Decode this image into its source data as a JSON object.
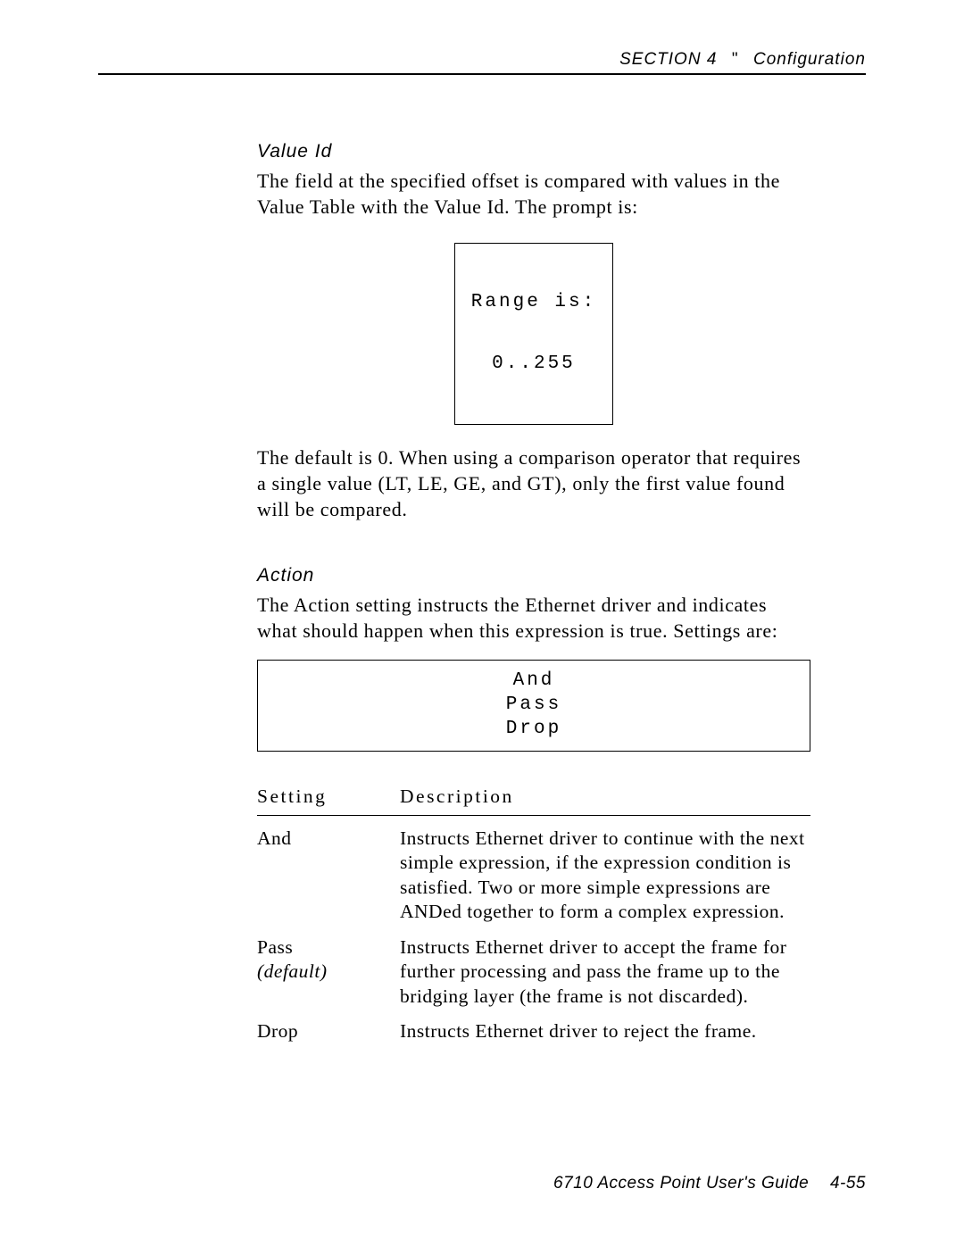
{
  "header": {
    "section_label": "SECTION 4",
    "separator_glyph": "\"",
    "section_title": "Configuration"
  },
  "value_id": {
    "heading": "Value Id",
    "intro": "The field at the specified offset is compared with values in the Value Table with the Value Id.  The prompt is:",
    "prompt_line1": "Range is:",
    "prompt_line2": "0..255",
    "followup": "The default is 0.  When using a comparison operator that requires a single value (LT, LE, GE, and GT), only the first value found will be compared."
  },
  "action": {
    "heading": "Action",
    "intro": "The Action setting instructs the Ethernet driver and indicates what should happen when this expression is true.  Settings are:",
    "options": [
      "And",
      "Pass",
      "Drop"
    ],
    "table": {
      "col_setting": "Setting",
      "col_description": "Description",
      "rows": [
        {
          "setting": "And",
          "default": false,
          "description": "Instructs Ethernet driver to continue with the next simple expression, if the expression condition is satisfied.  Two or more simple expressions are ANDed together to form a complex expression."
        },
        {
          "setting": "Pass",
          "default": true,
          "default_label": "(default)",
          "description": "Instructs Ethernet driver to accept the frame for further processing and pass the frame up to the bridging layer (the frame is not discarded)."
        },
        {
          "setting": "Drop",
          "default": false,
          "description": "Instructs Ethernet driver to reject the frame."
        }
      ]
    }
  },
  "footer": {
    "book_title": "6710 Access Point User's Guide",
    "page_number": "4-55"
  }
}
